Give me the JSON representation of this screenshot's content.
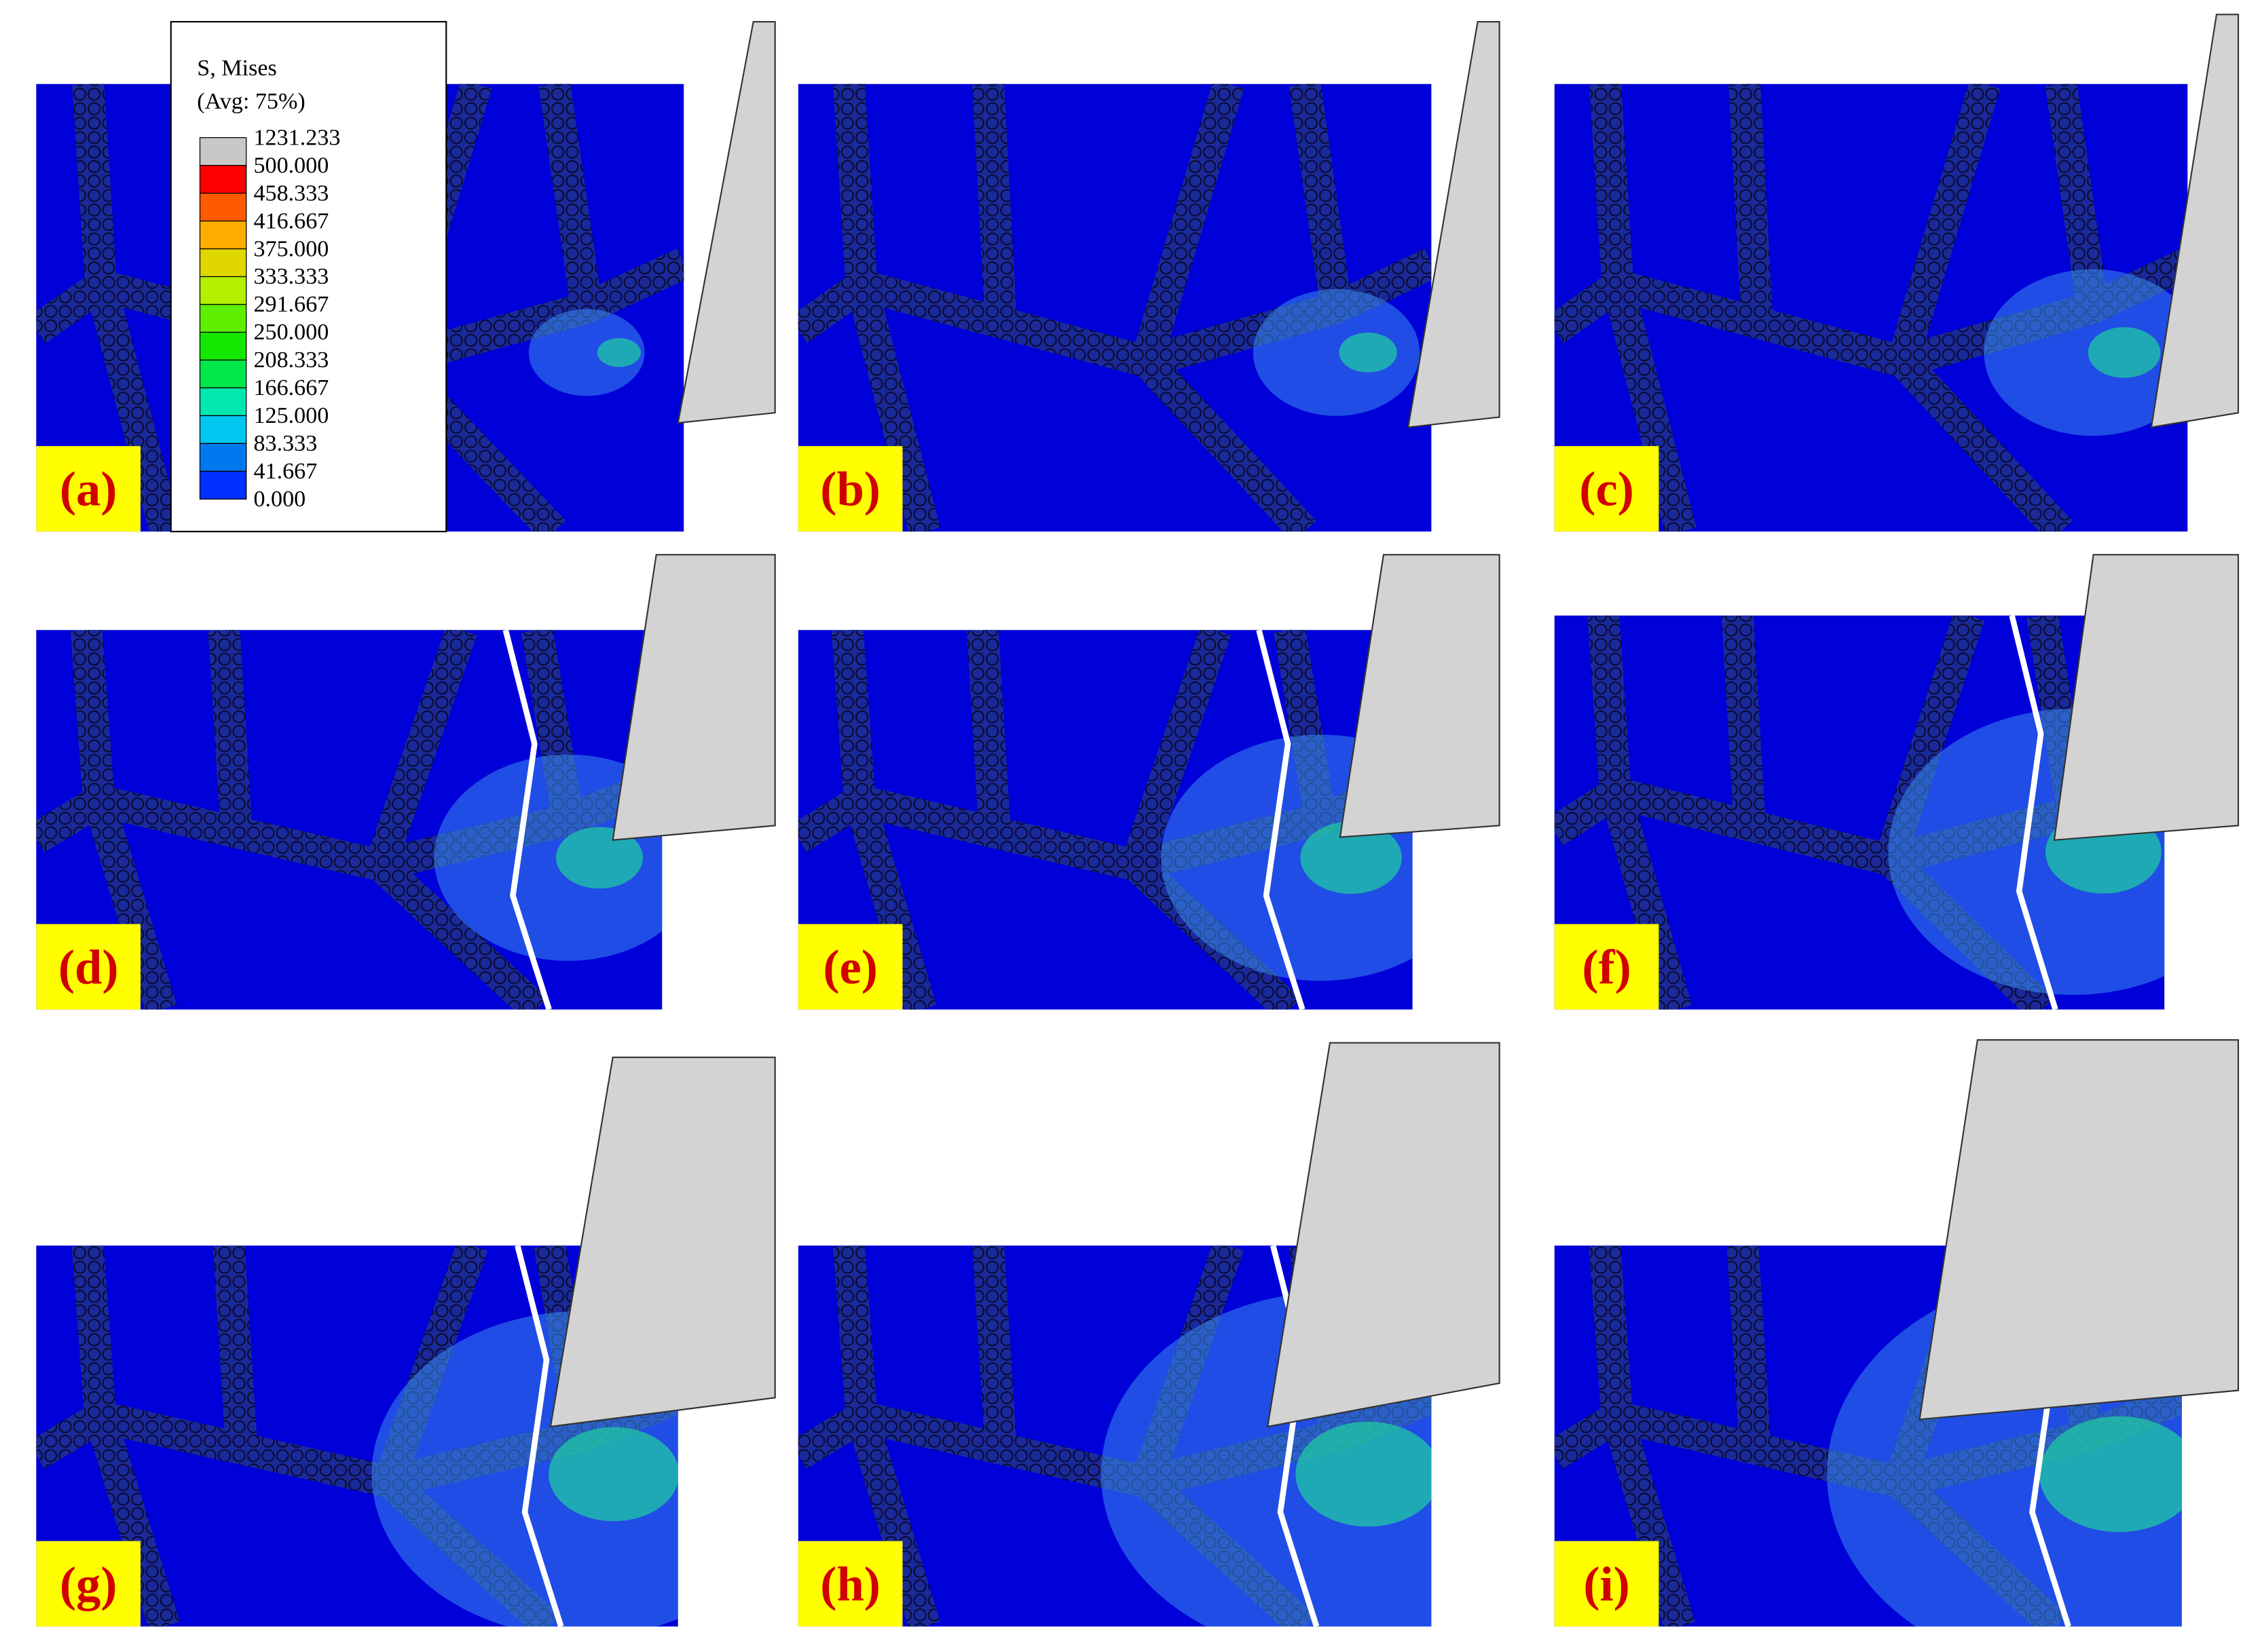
{
  "panels": [
    "(a)",
    "(b)",
    "(c)",
    "(d)",
    "(e)",
    "(f)",
    "(g)",
    "(h)",
    "(i)"
  ],
  "legend": {
    "title": "S, Mises",
    "subtitle": "(Avg: 75%)",
    "levels": [
      {
        "label": "1231.233",
        "color": "#c8c8c8"
      },
      {
        "label": "500.000",
        "color": "#ff0000"
      },
      {
        "label": "458.333",
        "color": "#ff5a00"
      },
      {
        "label": "416.667",
        "color": "#ffad00"
      },
      {
        "label": "375.000",
        "color": "#e0d600"
      },
      {
        "label": "333.333",
        "color": "#b5f000"
      },
      {
        "label": "291.667",
        "color": "#5ef000"
      },
      {
        "label": "250.000",
        "color": "#14e800"
      },
      {
        "label": "208.333",
        "color": "#00e84a"
      },
      {
        "label": "166.667",
        "color": "#00e8b0"
      },
      {
        "label": "125.000",
        "color": "#00c8f0"
      },
      {
        "label": "83.333",
        "color": "#0079f0"
      },
      {
        "label": "41.667",
        "color": "#0030ff"
      },
      {
        "label": "0.000",
        "color": null
      }
    ]
  }
}
